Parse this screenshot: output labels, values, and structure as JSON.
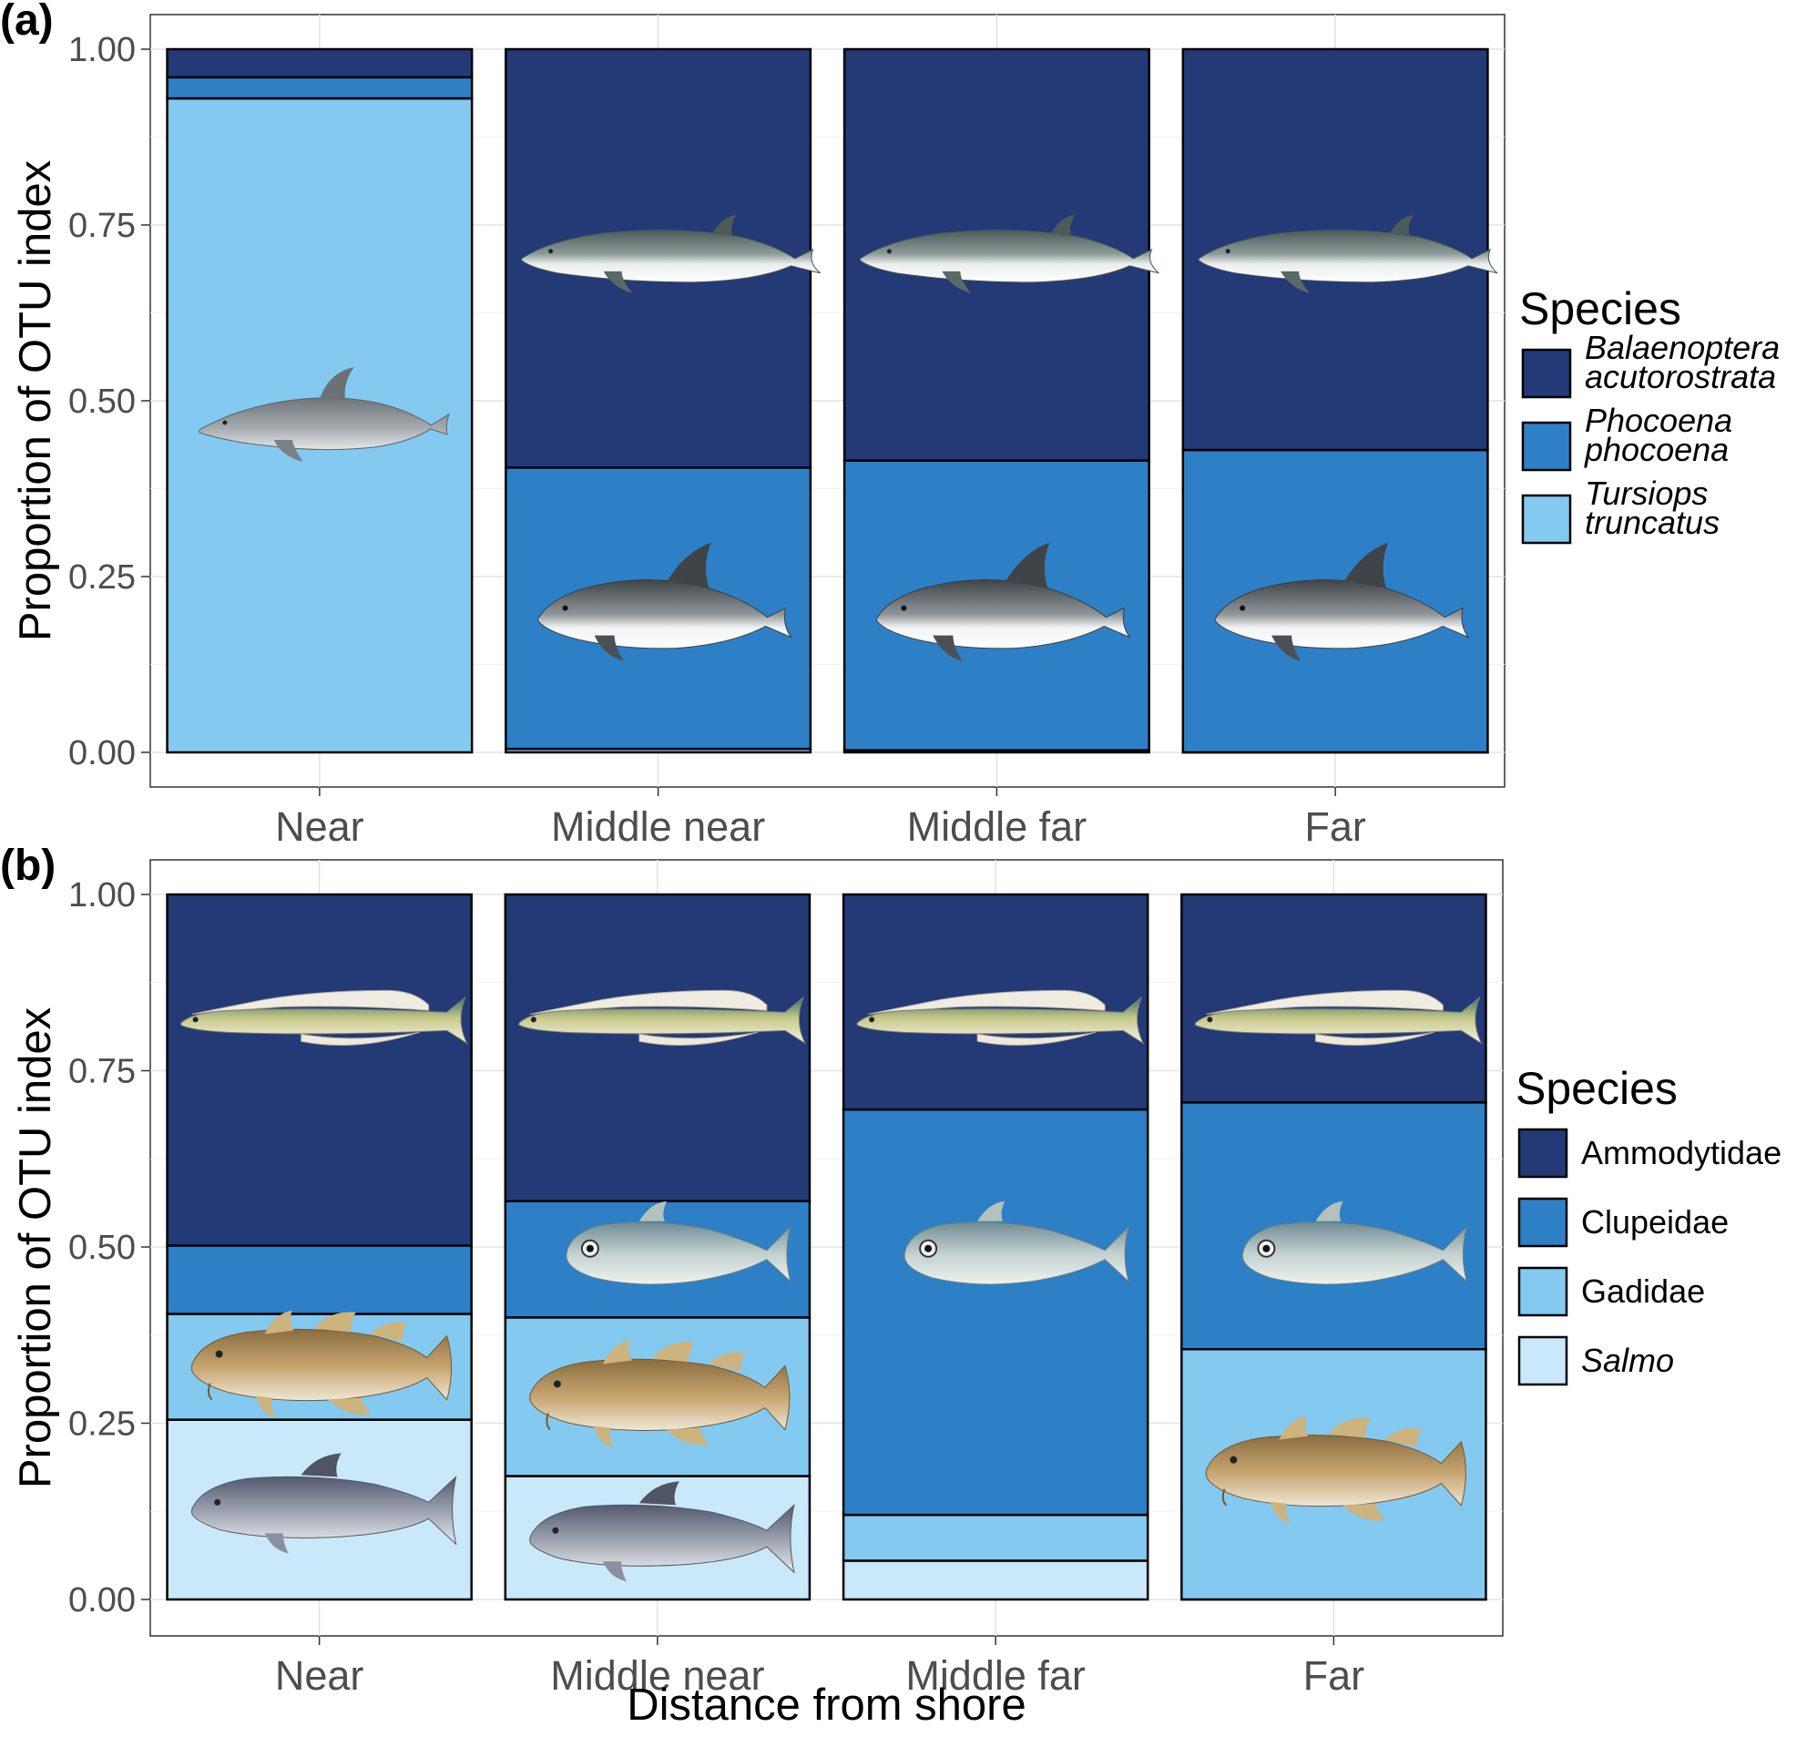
{
  "chart_data": [
    {
      "panel": "(a)",
      "type": "bar",
      "stacked": true,
      "ylabel": "Proportion of OTU index",
      "xlabel": "",
      "ylim": [
        0,
        1
      ],
      "yticks": [
        "0.00",
        "0.25",
        "0.50",
        "0.75",
        "1.00"
      ],
      "categories": [
        "Near",
        "Middle near",
        "Middle far",
        "Far"
      ],
      "legend": {
        "title": "Species",
        "placement": "right"
      },
      "series": [
        {
          "name": "Tursiops truncatus",
          "label_lines": [
            "Tursiops",
            "truncatus"
          ],
          "italic": true,
          "color": "#84c9f0",
          "values": [
            0.93,
            0.005,
            0.003,
            0.0
          ]
        },
        {
          "name": "Phocoena phocoena",
          "label_lines": [
            "Phocoena",
            "phocoena"
          ],
          "italic": true,
          "color": "#2e80c6",
          "values": [
            0.03,
            0.4,
            0.412,
            0.43
          ]
        },
        {
          "name": "Balaenoptera acutorostrata",
          "label_lines": [
            "Balaenoptera",
            "acutorostrata"
          ],
          "italic": true,
          "color": "#233a77",
          "values": [
            0.04,
            0.595,
            0.585,
            0.57
          ]
        }
      ],
      "illustrations": [
        {
          "category": "Near",
          "series": "Tursiops truncatus",
          "icon": "bottlenose-dolphin-illustration"
        },
        {
          "category": "Middle near",
          "series": "Phocoena phocoena",
          "icon": "harbour-porpoise-illustration"
        },
        {
          "category": "Middle near",
          "series": "Balaenoptera acutorostrata",
          "icon": "minke-whale-illustration"
        },
        {
          "category": "Middle far",
          "series": "Phocoena phocoena",
          "icon": "harbour-porpoise-illustration"
        },
        {
          "category": "Middle far",
          "series": "Balaenoptera acutorostrata",
          "icon": "minke-whale-illustration"
        },
        {
          "category": "Far",
          "series": "Phocoena phocoena",
          "icon": "harbour-porpoise-illustration"
        },
        {
          "category": "Far",
          "series": "Balaenoptera acutorostrata",
          "icon": "minke-whale-illustration"
        }
      ],
      "grid": true
    },
    {
      "panel": "(b)",
      "type": "bar",
      "stacked": true,
      "ylabel": "Proportion of OTU index",
      "xlabel": "Distance from shore",
      "ylim": [
        0,
        1
      ],
      "yticks": [
        "0.00",
        "0.25",
        "0.50",
        "0.75",
        "1.00"
      ],
      "categories": [
        "Near",
        "Middle near",
        "Middle far",
        "Far"
      ],
      "legend": {
        "title": "Species",
        "placement": "right"
      },
      "series": [
        {
          "name": "Salmo",
          "label_lines": [
            "Salmo"
          ],
          "italic": true,
          "color": "#c9e8f9",
          "values": [
            0.255,
            0.175,
            0.055,
            0.0
          ]
        },
        {
          "name": "Gadidae",
          "label_lines": [
            "Gadidae"
          ],
          "italic": false,
          "color": "#84c9f0",
          "values": [
            0.15,
            0.225,
            0.065,
            0.355
          ]
        },
        {
          "name": "Clupeidae",
          "label_lines": [
            "Clupeidae"
          ],
          "italic": false,
          "color": "#2e80c6",
          "values": [
            0.097,
            0.165,
            0.575,
            0.35
          ]
        },
        {
          "name": "Ammodytidae",
          "label_lines": [
            "Ammodytidae"
          ],
          "italic": false,
          "color": "#233a77",
          "values": [
            0.498,
            0.435,
            0.305,
            0.295
          ]
        }
      ],
      "illustrations": [
        {
          "category": "Near",
          "series": "Salmo",
          "icon": "salmon-illustration"
        },
        {
          "category": "Near",
          "series": "Gadidae",
          "icon": "cod-illustration"
        },
        {
          "category": "Near",
          "series": "Ammodytidae",
          "icon": "sandeel-illustration"
        },
        {
          "category": "Middle near",
          "series": "Salmo",
          "icon": "salmon-illustration"
        },
        {
          "category": "Middle near",
          "series": "Gadidae",
          "icon": "cod-illustration"
        },
        {
          "category": "Middle near",
          "series": "Clupeidae",
          "icon": "herring-illustration"
        },
        {
          "category": "Middle near",
          "series": "Ammodytidae",
          "icon": "sandeel-illustration"
        },
        {
          "category": "Middle far",
          "series": "Clupeidae",
          "icon": "herring-illustration"
        },
        {
          "category": "Middle far",
          "series": "Ammodytidae",
          "icon": "sandeel-illustration"
        },
        {
          "category": "Far",
          "series": "Gadidae",
          "icon": "cod-illustration"
        },
        {
          "category": "Far",
          "series": "Clupeidae",
          "icon": "herring-illustration"
        },
        {
          "category": "Far",
          "series": "Ammodytidae",
          "icon": "sandeel-illustration"
        }
      ],
      "grid": true
    }
  ]
}
